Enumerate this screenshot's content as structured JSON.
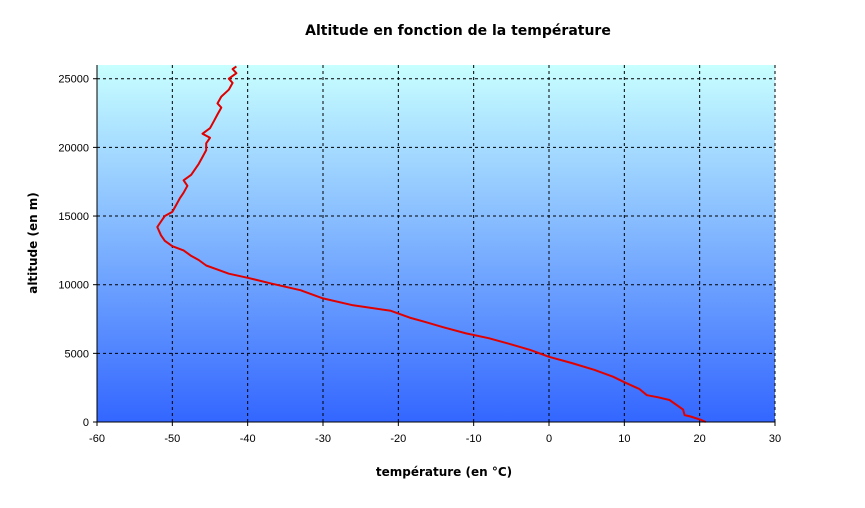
{
  "chart_data": {
    "type": "line",
    "title": "Altitude en fonction de la température",
    "xlabel": "température (en °C)",
    "ylabel": "altitude (en m)",
    "xlim": [
      -60,
      30
    ],
    "ylim": [
      0,
      26000
    ],
    "x_ticks": [
      -60,
      -50,
      -40,
      -30,
      -20,
      -10,
      0,
      10,
      20,
      30
    ],
    "y_ticks": [
      0,
      5000,
      10000,
      15000,
      20000,
      25000
    ],
    "grid": true,
    "legend": "none",
    "colors": {
      "line": "#e00000",
      "plot_top": "#c8ffff",
      "plot_bottom": "#3366ff",
      "grid": "#000000"
    },
    "series": [
      {
        "points": [
          [
            20.8,
            0
          ],
          [
            20.2,
            150
          ],
          [
            18.8,
            400
          ],
          [
            18.0,
            500
          ],
          [
            17.8,
            900
          ],
          [
            16.0,
            1600
          ],
          [
            14.5,
            1800
          ],
          [
            13.0,
            1950
          ],
          [
            12.0,
            2400
          ],
          [
            10.0,
            2900
          ],
          [
            8.5,
            3300
          ],
          [
            6.0,
            3800
          ],
          [
            3.0,
            4300
          ],
          [
            0.0,
            4750
          ],
          [
            -2.5,
            5250
          ],
          [
            -5.0,
            5650
          ],
          [
            -8.0,
            6100
          ],
          [
            -11.0,
            6450
          ],
          [
            -14.0,
            6900
          ],
          [
            -16.5,
            7300
          ],
          [
            -18.5,
            7600
          ],
          [
            -21.0,
            8100
          ],
          [
            -26.0,
            8500
          ],
          [
            -30.0,
            9000
          ],
          [
            -33.0,
            9600
          ],
          [
            -37.0,
            10100
          ],
          [
            -40.0,
            10500
          ],
          [
            -42.5,
            10800
          ],
          [
            -44.0,
            11100
          ],
          [
            -45.5,
            11400
          ],
          [
            -46.5,
            11800
          ],
          [
            -47.5,
            12100
          ],
          [
            -48.5,
            12500
          ],
          [
            -50.0,
            12800
          ],
          [
            -51.0,
            13200
          ],
          [
            -51.5,
            13600
          ],
          [
            -52.0,
            14200
          ],
          [
            -51.5,
            14600
          ],
          [
            -51.0,
            15000
          ],
          [
            -50.0,
            15300
          ],
          [
            -49.5,
            15800
          ],
          [
            -49.0,
            16300
          ],
          [
            -48.5,
            16700
          ],
          [
            -48.0,
            17200
          ],
          [
            -48.5,
            17600
          ],
          [
            -47.5,
            18000
          ],
          [
            -47.0,
            18400
          ],
          [
            -46.5,
            18800
          ],
          [
            -46.0,
            19300
          ],
          [
            -45.5,
            19800
          ],
          [
            -45.5,
            20300
          ],
          [
            -45.0,
            20700
          ],
          [
            -46.0,
            21000
          ],
          [
            -45.0,
            21400
          ],
          [
            -44.5,
            21900
          ],
          [
            -44.0,
            22400
          ],
          [
            -43.5,
            22900
          ],
          [
            -44.0,
            23200
          ],
          [
            -43.5,
            23700
          ],
          [
            -42.5,
            24200
          ],
          [
            -42.0,
            24700
          ],
          [
            -42.5,
            25000
          ],
          [
            -41.5,
            25400
          ],
          [
            -42.0,
            25700
          ],
          [
            -41.5,
            25900
          ]
        ]
      }
    ]
  }
}
